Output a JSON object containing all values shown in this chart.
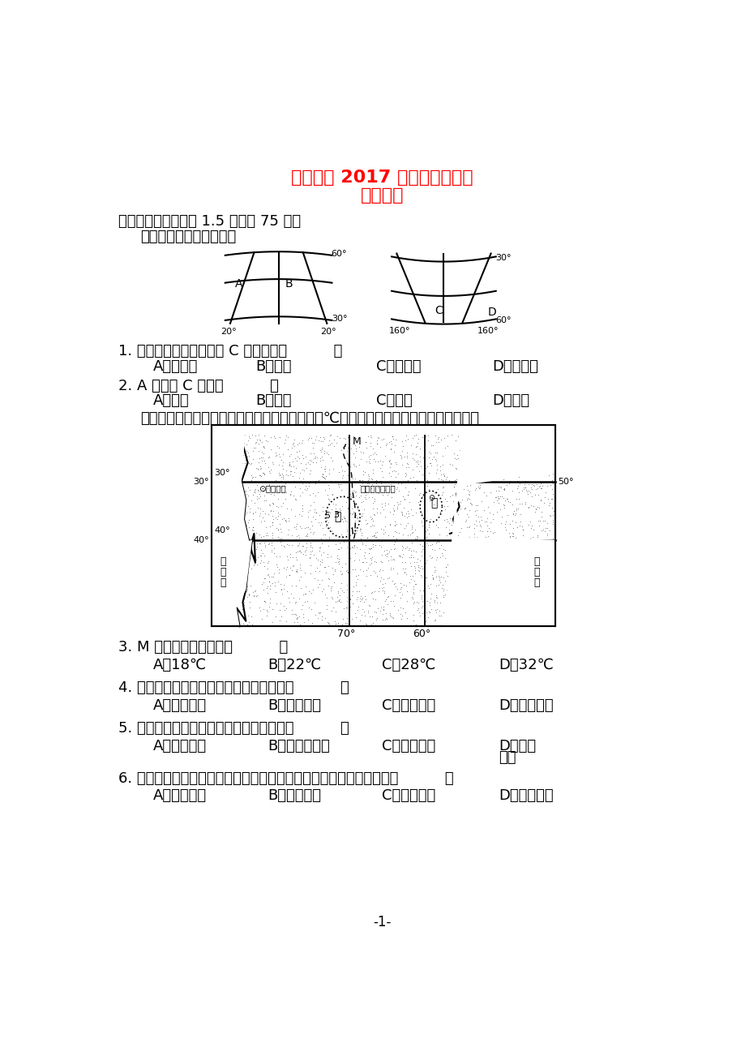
{
  "title_line1": "林州一中 2017 级高二开学检测",
  "title_line2": "地理试题",
  "title_color": "#FF0000",
  "bg_color": "#FFFFFF",
  "text_color": "#000000",
  "section1": "一、选择题（每小题 1.5 分，共 75 分）",
  "intro1": "读下图，回答下列各题。",
  "q1": "1. 根据经纬度判断，图中 C 点应位于（          ）",
  "q1a": "A．大西洋",
  "q1b": "B．非洲",
  "q1c": "C．太平洋",
  "q1d": "D．南美洲",
  "q2": "2. A 点位于 C 点的（          ）",
  "q2a": "A．西北",
  "q2b": "B．正西",
  "q2c": "C．东北",
  "q2d": "D．正东",
  "intro2": "下图为世界某大洲局部地区某月等温线（单位：℃）分布示意图，据此完成下面小题。",
  "q3": "3. M 地气温最有可能是（          ）",
  "q3a": "A．18℃",
  "q3b": "B．22℃",
  "q3c": "C．28℃",
  "q3d": "D．32℃",
  "q4": "4. 导致甲、乙两地气温差异的主导因素是（          ）",
  "q4a": "A．纬度位置",
  "q4b": "B．海陆差异",
  "q4c": "C．地形起伏",
  "q4d": "D．洋流性质",
  "q5": "5. 图示季节，影响圣地亚哥的大气环流是（          ）",
  "q5a": "A．东南信风",
  "q5b": "B．副热带高压",
  "q5c": "C．盛行西风",
  "q5d": "D．东南",
  "q5d2": "季风",
  "q6": "6. 图中西南沿海地区海岸线曲折，多幽深的峡湾，其形成原因主要是（          ）",
  "q6a": "A．断裂下陷",
  "q6b": "B．火山作用",
  "q6c": "C．流水作用",
  "q6d": "D．冰川作用",
  "page_num": "-1-"
}
